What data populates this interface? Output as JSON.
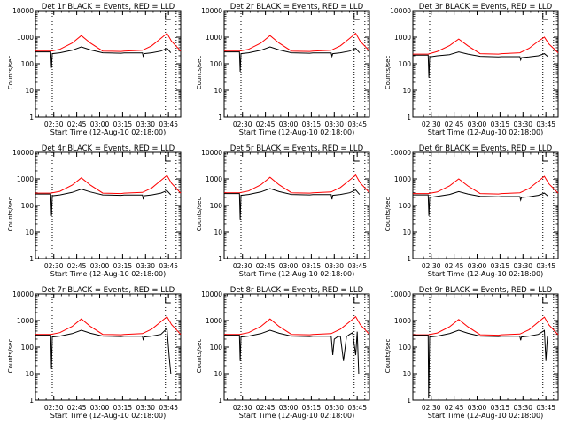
{
  "figure": {
    "common_xlabel": "Start Time (12-Aug-10 02:18:00)",
    "common_ylabel": "Counts/sec",
    "y_ticks": [
      "1",
      "10",
      "100",
      "1000",
      "10000"
    ],
    "x_ticks": [
      "02:30",
      "02:45",
      "03:00",
      "03:15",
      "03:30",
      "03:45"
    ],
    "x_ticks_panel_6": [
      "02:30",
      "02:45",
      "03:00",
      "03:15",
      "03:30",
      "03:45"
    ],
    "colors": {
      "events": "#000000",
      "lld": "#ff0000",
      "axes": "#000000"
    }
  },
  "chart_data": [
    {
      "type": "line",
      "title": "Det 1r BLACK = Events, RED = LLD",
      "xlabel": "Start Time (12-Aug-10 02:18:00)",
      "ylabel": "Counts/sec",
      "yscale": "log",
      "ylim": [
        1,
        10000
      ],
      "xlim_minutes": [
        0,
        95
      ],
      "vlines_minutes": [
        11,
        85,
        92
      ],
      "series": [
        {
          "name": "LLD",
          "color": "#ff0000",
          "x": [
            0,
            10,
            16,
            24,
            30,
            36,
            44,
            56,
            58,
            70,
            76,
            82,
            86,
            89,
            95
          ],
          "y": [
            300,
            300,
            350,
            600,
            1150,
            600,
            300,
            290,
            300,
            320,
            470,
            900,
            1400,
            700,
            300
          ]
        },
        {
          "name": "Events",
          "color": "#000000",
          "x": [
            0,
            10,
            10.5,
            11,
            16,
            24,
            30,
            36,
            44,
            56,
            58,
            70,
            70.5,
            71,
            76,
            82,
            86,
            88.5
          ],
          "y": [
            280,
            280,
            70,
            240,
            260,
            320,
            430,
            330,
            260,
            250,
            255,
            255,
            180,
            240,
            260,
            300,
            380,
            260
          ]
        }
      ]
    },
    {
      "type": "line",
      "title": "Det 2r BLACK = Events, RED = LLD",
      "xlabel": "Start Time (12-Aug-10 02:18:00)",
      "ylabel": "Counts/sec",
      "yscale": "log",
      "ylim": [
        1,
        10000
      ],
      "xlim_minutes": [
        0,
        95
      ],
      "vlines_minutes": [
        11,
        85,
        92
      ],
      "series": [
        {
          "name": "LLD",
          "color": "#ff0000",
          "x": [
            0,
            10,
            16,
            24,
            30,
            36,
            44,
            56,
            58,
            70,
            76,
            82,
            86,
            89,
            95
          ],
          "y": [
            300,
            300,
            350,
            600,
            1150,
            600,
            300,
            290,
            300,
            320,
            470,
            900,
            1400,
            700,
            300
          ]
        },
        {
          "name": "Events",
          "color": "#000000",
          "x": [
            0,
            10,
            10.5,
            11,
            16,
            24,
            30,
            36,
            44,
            56,
            58,
            70,
            70.5,
            71,
            76,
            82,
            86,
            88.5
          ],
          "y": [
            280,
            280,
            50,
            240,
            260,
            320,
            430,
            330,
            260,
            250,
            255,
            255,
            190,
            240,
            260,
            300,
            380,
            260
          ]
        }
      ]
    },
    {
      "type": "line",
      "title": "Det 3r BLACK = Events, RED = LLD",
      "xlabel": "Start Time (12-Aug-10 02:18:00)",
      "ylabel": "Counts/sec",
      "yscale": "log",
      "ylim": [
        1,
        10000
      ],
      "xlim_minutes": [
        0,
        95
      ],
      "vlines_minutes": [
        11,
        85,
        92
      ],
      "series": [
        {
          "name": "LLD",
          "color": "#ff0000",
          "x": [
            0,
            10,
            16,
            24,
            30,
            36,
            44,
            56,
            58,
            70,
            76,
            82,
            86,
            89,
            95
          ],
          "y": [
            230,
            230,
            290,
            480,
            850,
            470,
            240,
            230,
            240,
            260,
            380,
            700,
            1000,
            550,
            260
          ]
        },
        {
          "name": "Events",
          "color": "#000000",
          "x": [
            0,
            10,
            10.5,
            11,
            16,
            24,
            30,
            36,
            44,
            56,
            58,
            70,
            70.5,
            71,
            76,
            82,
            86,
            88.5
          ],
          "y": [
            210,
            210,
            30,
            180,
            200,
            220,
            280,
            230,
            190,
            180,
            185,
            185,
            140,
            170,
            180,
            200,
            240,
            180
          ]
        }
      ]
    },
    {
      "type": "line",
      "title": "Det 4r BLACK = Events, RED = LLD",
      "xlabel": "Start Time (12-Aug-10 02:18:00)",
      "ylabel": "Counts/sec",
      "yscale": "log",
      "ylim": [
        1,
        10000
      ],
      "xlim_minutes": [
        0,
        95
      ],
      "vlines_minutes": [
        11,
        85,
        92
      ],
      "series": [
        {
          "name": "LLD",
          "color": "#ff0000",
          "x": [
            0,
            10,
            16,
            24,
            30,
            36,
            44,
            56,
            58,
            70,
            76,
            82,
            86,
            89,
            95
          ],
          "y": [
            290,
            290,
            340,
            580,
            1100,
            580,
            290,
            280,
            290,
            310,
            450,
            870,
            1350,
            680,
            290
          ]
        },
        {
          "name": "Events",
          "color": "#000000",
          "x": [
            0,
            10,
            10.5,
            11,
            16,
            24,
            30,
            36,
            44,
            56,
            58,
            70,
            70.5,
            71,
            76,
            82,
            86,
            88.5
          ],
          "y": [
            270,
            270,
            40,
            230,
            250,
            310,
            410,
            320,
            250,
            240,
            245,
            245,
            170,
            230,
            250,
            290,
            360,
            250
          ]
        }
      ]
    },
    {
      "type": "line",
      "title": "Det 5r BLACK = Events, RED = LLD",
      "xlabel": "Start Time (12-Aug-10 02:18:00)",
      "ylabel": "Counts/sec",
      "yscale": "log",
      "ylim": [
        1,
        10000
      ],
      "xlim_minutes": [
        0,
        95
      ],
      "vlines_minutes": [
        11,
        85,
        92
      ],
      "series": [
        {
          "name": "LLD",
          "color": "#ff0000",
          "x": [
            0,
            10,
            16,
            24,
            30,
            36,
            44,
            56,
            58,
            70,
            76,
            82,
            86,
            89,
            95
          ],
          "y": [
            300,
            300,
            350,
            600,
            1150,
            600,
            300,
            290,
            300,
            320,
            470,
            900,
            1400,
            700,
            300
          ]
        },
        {
          "name": "Events",
          "color": "#000000",
          "x": [
            0,
            10,
            10.5,
            11,
            16,
            24,
            30,
            36,
            44,
            56,
            58,
            70,
            70.5,
            71,
            76,
            82,
            86,
            88.5
          ],
          "y": [
            280,
            280,
            30,
            240,
            260,
            320,
            430,
            330,
            260,
            250,
            255,
            255,
            170,
            240,
            260,
            300,
            380,
            260
          ]
        }
      ]
    },
    {
      "type": "line",
      "title": "Det 6r BLACK = Events, RED = LLD",
      "xlabel": "Start Time (12-Aug-10 02:18:00)",
      "ylabel": "Counts/sec",
      "yscale": "log",
      "ylim": [
        1,
        10000
      ],
      "xlim_minutes": [
        0,
        95
      ],
      "vlines_minutes": [
        11,
        85,
        92
      ],
      "series": [
        {
          "name": "LLD",
          "color": "#ff0000",
          "x": [
            0,
            10,
            16,
            24,
            30,
            36,
            44,
            56,
            58,
            70,
            76,
            82,
            86,
            89,
            95
          ],
          "y": [
            280,
            280,
            320,
            540,
            1000,
            540,
            280,
            270,
            280,
            300,
            430,
            820,
            1250,
            650,
            290
          ]
        },
        {
          "name": "Events",
          "color": "#000000",
          "x": [
            0,
            10,
            10.5,
            11,
            16,
            24,
            30,
            36,
            44,
            56,
            58,
            70,
            70.5,
            71,
            76,
            82,
            86,
            88.5
          ],
          "y": [
            250,
            250,
            40,
            200,
            220,
            260,
            330,
            270,
            220,
            210,
            215,
            215,
            160,
            200,
            210,
            240,
            290,
            220
          ]
        }
      ]
    },
    {
      "type": "line",
      "title": "Det 7r BLACK = Events, RED = LLD",
      "xlabel": "Start Time (12-Aug-10 02:18:00)",
      "ylabel": "Counts/sec",
      "yscale": "log",
      "ylim": [
        1,
        10000
      ],
      "xlim_minutes": [
        0,
        95
      ],
      "vlines_minutes": [
        11,
        85,
        92
      ],
      "series": [
        {
          "name": "LLD",
          "color": "#ff0000",
          "x": [
            0,
            10,
            16,
            24,
            30,
            36,
            44,
            56,
            58,
            70,
            76,
            82,
            86,
            89,
            95
          ],
          "y": [
            300,
            300,
            350,
            600,
            1150,
            600,
            300,
            290,
            300,
            320,
            470,
            900,
            1400,
            700,
            300
          ]
        },
        {
          "name": "Events",
          "color": "#000000",
          "x": [
            0,
            10,
            10.5,
            11,
            16,
            24,
            30,
            36,
            44,
            56,
            58,
            70,
            70.5,
            71,
            76,
            82,
            86,
            87.5,
            88.5
          ],
          "y": [
            280,
            280,
            15,
            240,
            260,
            320,
            430,
            330,
            260,
            250,
            255,
            255,
            180,
            240,
            260,
            300,
            500,
            40,
            10
          ]
        }
      ]
    },
    {
      "type": "line",
      "title": "Det 8r BLACK = Events, RED = LLD",
      "xlabel": "Start Time (12-Aug-10 02:18:00)",
      "ylabel": "Counts/sec",
      "yscale": "log",
      "ylim": [
        1,
        10000
      ],
      "xlim_minutes": [
        0,
        95
      ],
      "vlines_minutes": [
        11,
        85,
        92
      ],
      "series": [
        {
          "name": "LLD",
          "color": "#ff0000",
          "x": [
            0,
            10,
            16,
            24,
            30,
            36,
            44,
            56,
            58,
            70,
            76,
            82,
            86,
            89,
            95
          ],
          "y": [
            300,
            300,
            350,
            600,
            1150,
            600,
            300,
            290,
            300,
            320,
            470,
            900,
            1400,
            700,
            300
          ]
        },
        {
          "name": "Events",
          "color": "#000000",
          "x": [
            0,
            10,
            10.5,
            11,
            16,
            24,
            30,
            36,
            44,
            56,
            58,
            70,
            71,
            72,
            74,
            76,
            78,
            80,
            82,
            84,
            86,
            87,
            88
          ],
          "y": [
            280,
            280,
            30,
            240,
            260,
            320,
            430,
            330,
            260,
            250,
            255,
            255,
            50,
            200,
            240,
            260,
            30,
            250,
            300,
            350,
            50,
            380,
            10
          ]
        }
      ]
    },
    {
      "type": "line",
      "title": "Det 9r BLACK = Events, RED = LLD",
      "xlabel": "Start Time (12-Aug-10 02:18:00)",
      "ylabel": "Counts/sec",
      "yscale": "log",
      "ylim": [
        1,
        10000
      ],
      "xlim_minutes": [
        0,
        95
      ],
      "vlines_minutes": [
        11,
        85,
        92
      ],
      "series": [
        {
          "name": "LLD",
          "color": "#ff0000",
          "x": [
            0,
            10,
            16,
            24,
            30,
            36,
            44,
            56,
            58,
            70,
            76,
            82,
            86,
            89,
            95
          ],
          "y": [
            290,
            290,
            340,
            580,
            1100,
            580,
            290,
            280,
            290,
            310,
            450,
            870,
            1350,
            680,
            290
          ]
        },
        {
          "name": "Events",
          "color": "#000000",
          "x": [
            0,
            10,
            10.3,
            11,
            16,
            24,
            30,
            36,
            44,
            56,
            58,
            70,
            70.5,
            71,
            76,
            82,
            86,
            87,
            88
          ],
          "y": [
            280,
            280,
            1.2,
            240,
            260,
            320,
            430,
            330,
            260,
            250,
            255,
            255,
            180,
            240,
            260,
            300,
            420,
            30,
            250
          ]
        }
      ]
    }
  ]
}
